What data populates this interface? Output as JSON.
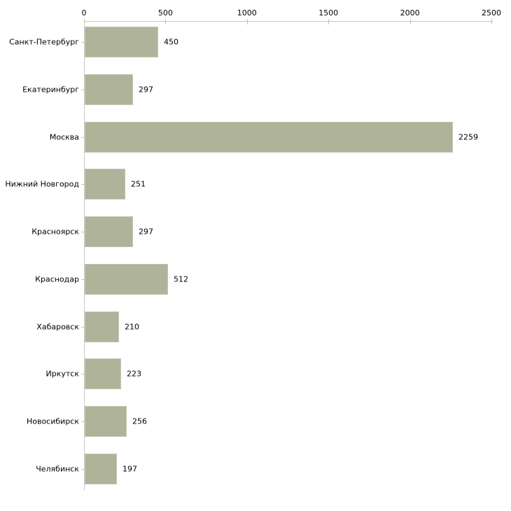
{
  "chart_data": {
    "type": "bar",
    "orientation": "horizontal",
    "title": "",
    "xlabel": "",
    "ylabel": "",
    "categories": [
      "Санкт-Петербург",
      "Екатеринбург",
      "Москва",
      "Нижний Новгород",
      "Красноярск",
      "Краснодар",
      "Хабаровск",
      "Иркутск",
      "Новосибирск",
      "Челябинск"
    ],
    "values": [
      450,
      297,
      2259,
      251,
      297,
      512,
      210,
      223,
      256,
      197
    ],
    "value_labels": [
      "450",
      "297",
      "2259",
      "251",
      "297",
      "512",
      "210",
      "223",
      "256",
      "197"
    ],
    "xlim": [
      0,
      2500
    ],
    "xticks": [
      0,
      500,
      1000,
      1500,
      2000,
      2500
    ],
    "xtick_labels": [
      "0",
      "500",
      "1000",
      "1500",
      "2000",
      "2500"
    ],
    "grid": false,
    "legend": null,
    "axis_position": "top",
    "colors": {
      "bar_fill": "#aeb39a",
      "bar_border": "#c3c6b1",
      "axis_line": "#c8c8c8",
      "tick_mark": "#c5c6a4",
      "text": "#000000",
      "background": "#ffffff"
    }
  }
}
